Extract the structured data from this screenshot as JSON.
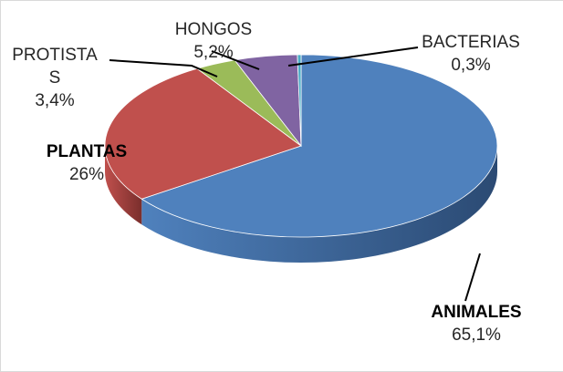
{
  "chart_data": {
    "type": "pie",
    "style": "3d",
    "categories": [
      "ANIMALES",
      "PLANTAS",
      "PROTISTAS",
      "HONGOS",
      "BACTERIAS"
    ],
    "values": [
      65.1,
      26,
      3.4,
      5.2,
      0.3
    ],
    "value_labels": [
      "65,1%",
      "26%",
      "3,4%",
      "5,2%",
      "0,3%"
    ],
    "colors": [
      "#4f81bd",
      "#c0504d",
      "#9bbb59",
      "#8064a2",
      "#4bacc6"
    ],
    "side_colors": [
      "#2b4a73",
      "#7a2e2c",
      "#5e7a2e",
      "#4c3a66",
      "#2d6a7a"
    ],
    "labels": [
      {
        "category": "ANIMALES",
        "lines": [
          "ANIMALES"
        ],
        "value": "65,1%",
        "bold": true,
        "leader": true
      },
      {
        "category": "PLANTAS",
        "lines": [
          "PLANTAS"
        ],
        "value": "26%",
        "bold": true,
        "leader": false
      },
      {
        "category": "PROTISTAS",
        "lines": [
          "PROTISTA",
          "S"
        ],
        "value": "3,4%",
        "bold": false,
        "leader": true
      },
      {
        "category": "HONGOS",
        "lines": [
          "HONGOS"
        ],
        "value": "5,2%",
        "bold": false,
        "leader": true
      },
      {
        "category": "BACTERIAS",
        "lines": [
          "BACTERIAS"
        ],
        "value": "0,3%",
        "bold": false,
        "leader": true
      }
    ],
    "title": "",
    "legend": "none"
  }
}
